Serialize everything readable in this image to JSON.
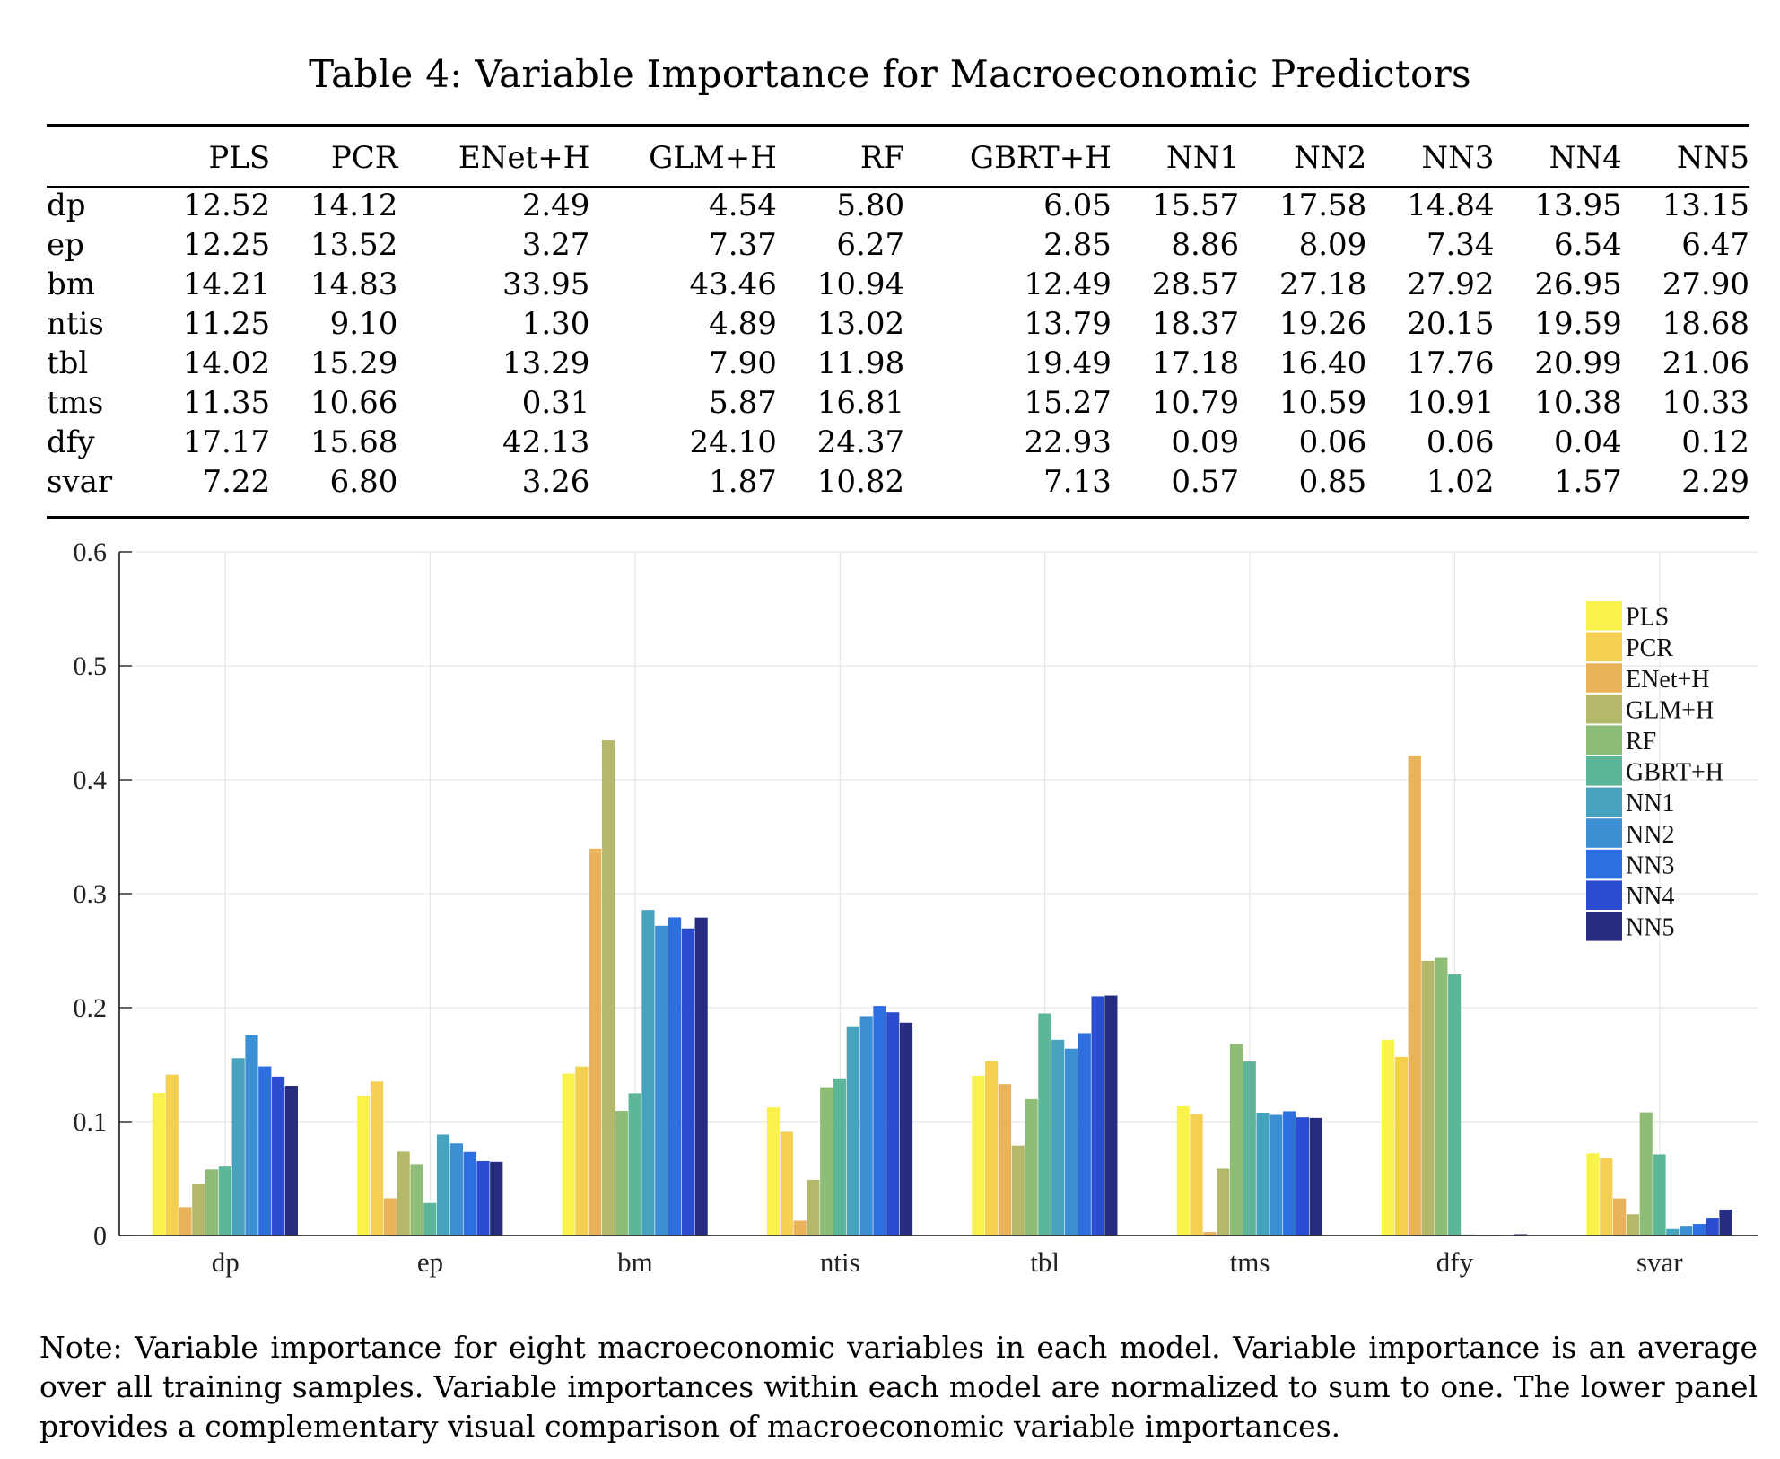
{
  "title": "Table 4: Variable Importance for Macroeconomic Predictors",
  "table": {
    "columns": [
      "",
      "PLS",
      "PCR",
      "ENet+H",
      "GLM+H",
      "RF",
      "GBRT+H",
      "NN1",
      "NN2",
      "NN3",
      "NN4",
      "NN5"
    ],
    "rows": [
      {
        "label": "dp",
        "values": [
          "12.52",
          "14.12",
          "2.49",
          "4.54",
          "5.80",
          "6.05",
          "15.57",
          "17.58",
          "14.84",
          "13.95",
          "13.15"
        ]
      },
      {
        "label": "ep",
        "values": [
          "12.25",
          "13.52",
          "3.27",
          "7.37",
          "6.27",
          "2.85",
          "8.86",
          "8.09",
          "7.34",
          "6.54",
          "6.47"
        ]
      },
      {
        "label": "bm",
        "values": [
          "14.21",
          "14.83",
          "33.95",
          "43.46",
          "10.94",
          "12.49",
          "28.57",
          "27.18",
          "27.92",
          "26.95",
          "27.90"
        ]
      },
      {
        "label": "ntis",
        "values": [
          "11.25",
          "9.10",
          "1.30",
          "4.89",
          "13.02",
          "13.79",
          "18.37",
          "19.26",
          "20.15",
          "19.59",
          "18.68"
        ]
      },
      {
        "label": "tbl",
        "values": [
          "14.02",
          "15.29",
          "13.29",
          "7.90",
          "11.98",
          "19.49",
          "17.18",
          "16.40",
          "17.76",
          "20.99",
          "21.06"
        ]
      },
      {
        "label": "tms",
        "values": [
          "11.35",
          "10.66",
          "0.31",
          "5.87",
          "16.81",
          "15.27",
          "10.79",
          "10.59",
          "10.91",
          "10.38",
          "10.33"
        ]
      },
      {
        "label": "dfy",
        "values": [
          "17.17",
          "15.68",
          "42.13",
          "24.10",
          "24.37",
          "22.93",
          "0.09",
          "0.06",
          "0.06",
          "0.04",
          "0.12"
        ]
      },
      {
        "label": "svar",
        "values": [
          "7.22",
          "6.80",
          "3.26",
          "1.87",
          "10.82",
          "7.13",
          "0.57",
          "0.85",
          "1.02",
          "1.57",
          "2.29"
        ]
      }
    ]
  },
  "chart_data": {
    "type": "bar",
    "categories": [
      "dp",
      "ep",
      "bm",
      "ntis",
      "tbl",
      "tms",
      "dfy",
      "svar"
    ],
    "ylim": [
      0,
      0.6
    ],
    "yticks": [
      "0",
      "0.1",
      "0.2",
      "0.3",
      "0.4",
      "0.5",
      "0.6"
    ],
    "grid": true,
    "legend_position": "top-right",
    "series": [
      {
        "name": "PLS",
        "color": "#f9f24a",
        "values": [
          0.1252,
          0.1225,
          0.1421,
          0.1125,
          0.1402,
          0.1135,
          0.1717,
          0.0722
        ]
      },
      {
        "name": "PCR",
        "color": "#f4cf52",
        "values": [
          0.1412,
          0.1352,
          0.1483,
          0.091,
          0.1529,
          0.1066,
          0.1568,
          0.068
        ]
      },
      {
        "name": "ENet+H",
        "color": "#e8b35a",
        "values": [
          0.0249,
          0.0327,
          0.3395,
          0.013,
          0.1329,
          0.0031,
          0.4213,
          0.0326
        ]
      },
      {
        "name": "GLM+H",
        "color": "#b4b86a",
        "values": [
          0.0454,
          0.0737,
          0.4346,
          0.0489,
          0.079,
          0.0587,
          0.241,
          0.0187
        ]
      },
      {
        "name": "RF",
        "color": "#8ebd78",
        "values": [
          0.058,
          0.0627,
          0.1094,
          0.1302,
          0.1198,
          0.1681,
          0.2437,
          0.1082
        ]
      },
      {
        "name": "GBRT+H",
        "color": "#5db59a",
        "values": [
          0.0605,
          0.0285,
          0.1249,
          0.1379,
          0.1949,
          0.1527,
          0.2293,
          0.0713
        ]
      },
      {
        "name": "NN1",
        "color": "#47a3bd",
        "values": [
          0.1557,
          0.0886,
          0.2857,
          0.1837,
          0.1718,
          0.1079,
          0.0009,
          0.0057
        ]
      },
      {
        "name": "NN2",
        "color": "#3d8fd4",
        "values": [
          0.1758,
          0.0809,
          0.2718,
          0.1926,
          0.164,
          0.1059,
          0.0006,
          0.0085
        ]
      },
      {
        "name": "NN3",
        "color": "#2e6fe0",
        "values": [
          0.1484,
          0.0734,
          0.2792,
          0.2015,
          0.1776,
          0.1091,
          0.0006,
          0.0102
        ]
      },
      {
        "name": "NN4",
        "color": "#2a4ccf",
        "values": [
          0.1395,
          0.0654,
          0.2695,
          0.1959,
          0.2099,
          0.1038,
          0.0004,
          0.0157
        ]
      },
      {
        "name": "NN5",
        "color": "#262d7e",
        "values": [
          0.1315,
          0.0647,
          0.279,
          0.1868,
          0.2106,
          0.1033,
          0.0012,
          0.0229
        ]
      }
    ]
  },
  "note": "Note: Variable importance for eight macroeconomic variables in each model. Variable importance is an average over all training samples. Variable importances within each model are normalized to sum to one. The lower panel provides a complementary visual comparison of macroeconomic variable importances."
}
